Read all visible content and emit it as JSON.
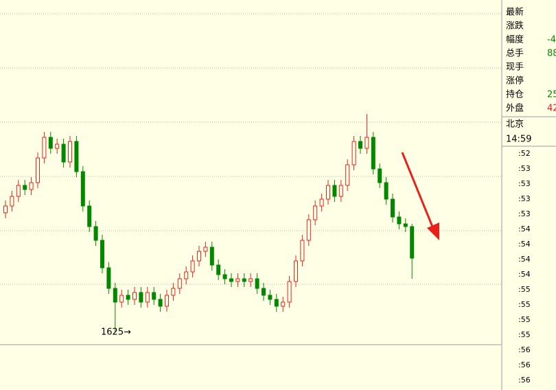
{
  "chart_data": {
    "type": "candlestick",
    "ylim": [
      1583,
      1867
    ],
    "low_label": "1625→",
    "open": [
      1712,
      1717,
      1724,
      1732,
      1729,
      1734,
      1752,
      1767,
      1759,
      1762,
      1749,
      1764,
      1742,
      1717,
      1702,
      1692,
      1672,
      1657,
      1647,
      1652,
      1649,
      1654,
      1647,
      1654,
      1649,
      1644,
      1652,
      1657,
      1664,
      1669,
      1677,
      1684,
      1687,
      1674,
      1667,
      1664,
      1662,
      1664,
      1662,
      1664,
      1657,
      1652,
      1649,
      1644,
      1647,
      1662,
      1677,
      1692,
      1707,
      1717,
      1722,
      1732,
      1724,
      1732,
      1747,
      1764,
      1759,
      1767,
      1744,
      1734,
      1722,
      1709,
      1704,
      1702
    ],
    "high": [
      1721,
      1728,
      1736,
      1736,
      1738,
      1756,
      1771,
      1771,
      1766,
      1766,
      1768,
      1768,
      1746,
      1721,
      1706,
      1696,
      1676,
      1661,
      1656,
      1656,
      1658,
      1658,
      1658,
      1658,
      1653,
      1656,
      1661,
      1668,
      1673,
      1681,
      1688,
      1691,
      1691,
      1678,
      1671,
      1668,
      1668,
      1668,
      1668,
      1668,
      1661,
      1656,
      1653,
      1651,
      1666,
      1681,
      1696,
      1711,
      1721,
      1726,
      1736,
      1736,
      1736,
      1751,
      1768,
      1768,
      1784,
      1771,
      1748,
      1738,
      1726,
      1713,
      1708,
      1704
    ],
    "low": [
      1708,
      1713,
      1720,
      1725,
      1725,
      1730,
      1748,
      1755,
      1755,
      1745,
      1745,
      1738,
      1713,
      1698,
      1688,
      1668,
      1653,
      1625,
      1643,
      1645,
      1645,
      1643,
      1643,
      1645,
      1640,
      1640,
      1648,
      1653,
      1660,
      1665,
      1673,
      1680,
      1670,
      1663,
      1660,
      1658,
      1658,
      1658,
      1658,
      1653,
      1648,
      1645,
      1640,
      1640,
      1643,
      1658,
      1673,
      1688,
      1703,
      1713,
      1718,
      1720,
      1720,
      1728,
      1743,
      1755,
      1755,
      1740,
      1730,
      1718,
      1705,
      1700,
      1698,
      1664
    ],
    "close": [
      1717,
      1724,
      1732,
      1729,
      1734,
      1752,
      1767,
      1759,
      1762,
      1749,
      1764,
      1742,
      1717,
      1702,
      1692,
      1672,
      1657,
      1647,
      1652,
      1649,
      1654,
      1647,
      1654,
      1649,
      1644,
      1652,
      1657,
      1664,
      1669,
      1677,
      1684,
      1687,
      1674,
      1667,
      1664,
      1662,
      1664,
      1662,
      1664,
      1657,
      1652,
      1649,
      1644,
      1647,
      1662,
      1677,
      1692,
      1707,
      1717,
      1722,
      1732,
      1724,
      1732,
      1747,
      1764,
      1759,
      1767,
      1744,
      1734,
      1722,
      1709,
      1704,
      1702,
      1679
    ]
  },
  "panel": {
    "rows": [
      [
        "最新",
        ""
      ],
      [
        "涨跌",
        ""
      ],
      [
        "幅度",
        "-4"
      ],
      [
        "总手",
        "88"
      ],
      [
        "现手",
        ""
      ],
      [
        "涨停",
        ""
      ],
      [
        "持仓",
        "25"
      ],
      [
        "外盘",
        "42"
      ]
    ],
    "city": "北京",
    "time": "14:59",
    "ticks": [
      ":52",
      ":53",
      ":53",
      ":53",
      ":53",
      ":54",
      ":54",
      ":54",
      ":54",
      ":55",
      ":55",
      ":55",
      ":55",
      ":56",
      ":56",
      ":56"
    ]
  }
}
